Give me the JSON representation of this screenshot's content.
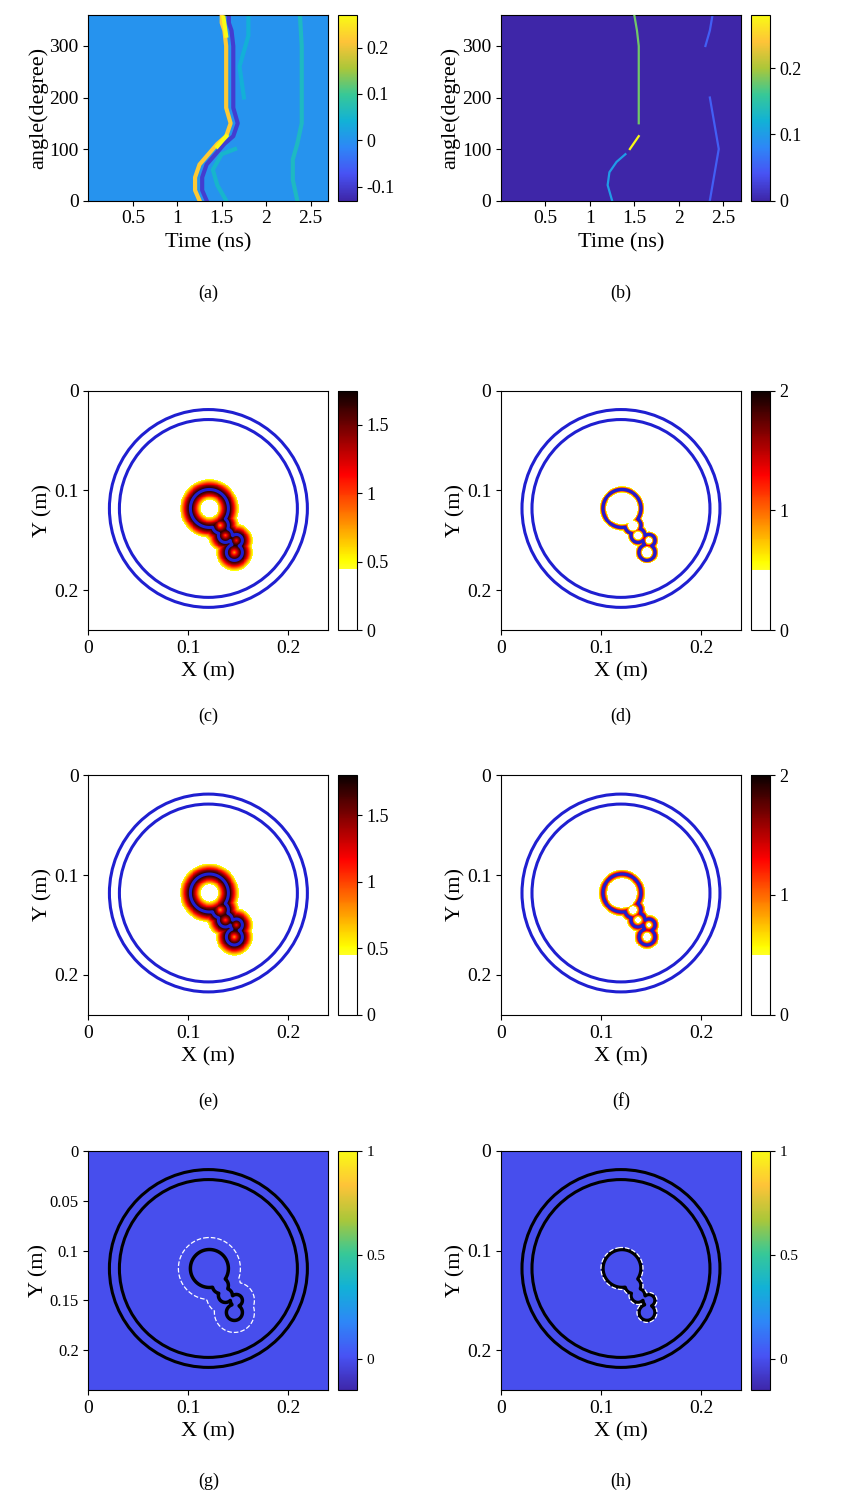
{
  "chart_data": [
    {
      "type": "traces",
      "label": "(a)",
      "xlabel": "Time (ns)",
      "ylabel": "angle(degree)",
      "xlim": [
        0,
        2.7
      ],
      "ylim": [
        0,
        360
      ],
      "xticks": [
        0.5,
        1,
        1.5,
        2,
        2.5
      ],
      "yticks": [
        0,
        100,
        200,
        300
      ],
      "colorbar": {
        "range": [
          -0.13,
          0.27
        ],
        "ticks": [
          -0.1,
          0,
          0.1,
          0.2
        ]
      },
      "background_value": 0,
      "traces": [
        {
          "value": 0.22,
          "x": [
            1.25,
            1.2,
            1.2,
            1.25,
            1.35,
            1.45,
            1.55,
            1.6,
            1.55,
            1.55,
            1.53,
            1.5,
            1.5
          ],
          "y": [
            0,
            20,
            45,
            70,
            90,
            110,
            125,
            150,
            180,
            300,
            330,
            345,
            360
          ]
        },
        {
          "value": -0.1,
          "x": [
            1.33,
            1.28,
            1.28,
            1.33,
            1.43,
            1.53,
            1.63,
            1.68,
            1.63,
            1.63,
            1.61,
            1.58,
            1.58
          ],
          "y": [
            0,
            20,
            45,
            70,
            90,
            110,
            125,
            150,
            180,
            300,
            330,
            345,
            360
          ]
        },
        {
          "value": 0.27,
          "x": [
            1.45,
            1.55
          ],
          "y": [
            105,
            125
          ]
        },
        {
          "value": 0.27,
          "x": [
            1.55,
            1.52
          ],
          "y": [
            320,
            355
          ]
        },
        {
          "value": 0.05,
          "x": [
            1.55,
            1.45,
            1.4,
            1.5,
            1.65
          ],
          "y": [
            0,
            30,
            60,
            90,
            100
          ]
        },
        {
          "value": 0.06,
          "x": [
            2.35,
            2.3,
            2.3,
            2.35,
            2.4,
            2.4,
            2.38
          ],
          "y": [
            0,
            40,
            80,
            110,
            150,
            300,
            360
          ]
        },
        {
          "value": 0.04,
          "x": [
            1.75,
            1.7,
            1.8,
            1.8
          ],
          "y": [
            200,
            260,
            320,
            360
          ]
        }
      ]
    },
    {
      "type": "traces",
      "label": "(b)",
      "xlabel": "Time (ns)",
      "ylabel": "angle(degree)",
      "xlim": [
        0,
        2.7
      ],
      "ylim": [
        0,
        360
      ],
      "xticks": [
        0.5,
        1,
        1.5,
        2,
        2.5
      ],
      "yticks": [
        0,
        100,
        200,
        300
      ],
      "colorbar": {
        "range": [
          0,
          0.28
        ],
        "ticks": [
          0,
          0.1,
          0.2
        ]
      },
      "background_value": 0,
      "traces": [
        {
          "value": 0.1,
          "x": [
            1.25,
            1.2,
            1.22,
            1.3,
            1.4
          ],
          "y": [
            0,
            30,
            55,
            75,
            90
          ]
        },
        {
          "value": 0.28,
          "x": [
            1.45,
            1.55
          ],
          "y": [
            100,
            125
          ]
        },
        {
          "value": 0.18,
          "x": [
            1.55,
            1.55,
            1.53,
            1.5
          ],
          "y": [
            150,
            300,
            330,
            360
          ]
        },
        {
          "value": 0.05,
          "x": [
            2.35,
            2.4,
            2.45,
            2.4,
            2.35
          ],
          "y": [
            0,
            50,
            100,
            150,
            200
          ]
        },
        {
          "value": 0.05,
          "x": [
            2.3,
            2.35,
            2.38
          ],
          "y": [
            300,
            330,
            360
          ]
        }
      ]
    },
    {
      "type": "band",
      "label": "(c)",
      "xlabel": "X (m)",
      "ylabel": "Y (m)",
      "xlim": [
        0,
        0.24
      ],
      "ylim": [
        0.24,
        0
      ],
      "xticks": [
        0,
        0.1,
        0.2
      ],
      "yticks": [
        0,
        0.1,
        0.2
      ],
      "colorbar": {
        "range": [
          0,
          1.75
        ],
        "ticks": [
          0,
          0.5,
          1,
          1.5
        ],
        "white_below": 0.45
      },
      "peak_value": 1.7,
      "band_width": 0.009
    },
    {
      "type": "band",
      "label": "(d)",
      "xlabel": "X (m)",
      "ylabel": "Y (m)",
      "xlim": [
        0,
        0.24
      ],
      "ylim": [
        0.24,
        0
      ],
      "xticks": [
        0,
        0.1,
        0.2
      ],
      "yticks": [
        0,
        0.1,
        0.2
      ],
      "colorbar": {
        "range": [
          0,
          2
        ],
        "ticks": [
          0,
          1,
          2
        ],
        "white_below": 0.5
      },
      "peak_value": 1.5,
      "band_width": 0.003
    },
    {
      "type": "band",
      "label": "(e)",
      "xlabel": "X (m)",
      "ylabel": "Y (m)",
      "xlim": [
        0,
        0.24
      ],
      "ylim": [
        0.24,
        0
      ],
      "xticks": [
        0,
        0.1,
        0.2
      ],
      "yticks": [
        0,
        0.1,
        0.2
      ],
      "colorbar": {
        "range": [
          0,
          1.8
        ],
        "ticks": [
          0,
          0.5,
          1,
          1.5
        ],
        "white_below": 0.45
      },
      "peak_value": 1.75,
      "band_width": 0.009
    },
    {
      "type": "band",
      "label": "(f)",
      "xlabel": "X (m)",
      "ylabel": "Y (m)",
      "xlim": [
        0,
        0.24
      ],
      "ylim": [
        0.24,
        0
      ],
      "xticks": [
        0,
        0.1,
        0.2
      ],
      "yticks": [
        0,
        0.1,
        0.2
      ],
      "colorbar": {
        "range": [
          0,
          2
        ],
        "ticks": [
          0,
          1,
          2
        ],
        "white_below": 0.5
      },
      "peak_value": 1.5,
      "band_width": 0.004
    },
    {
      "type": "contour",
      "label": "(g)",
      "xlabel": "X (m)",
      "ylabel": "Y (m)",
      "xlim": [
        0,
        0.24
      ],
      "ylim": [
        0.24,
        0
      ],
      "xticks": [
        0,
        0.1,
        0.2
      ],
      "yticks": [
        0,
        0.05,
        0.1,
        0.15,
        0.2
      ],
      "colorbar": {
        "range": [
          -0.15,
          1
        ],
        "ticks": [
          0,
          0.5,
          1
        ]
      },
      "background_value": 0,
      "reconstruction_offset": 0.012
    },
    {
      "type": "contour",
      "label": "(h)",
      "xlabel": "X (m)",
      "ylabel": "Y (m)",
      "xlim": [
        0,
        0.24
      ],
      "ylim": [
        0.24,
        0
      ],
      "xticks": [
        0,
        0.1,
        0.2
      ],
      "yticks": [
        0,
        0.1,
        0.2
      ],
      "colorbar": {
        "range": [
          -0.15,
          1
        ],
        "ticks": [
          0,
          0.5,
          1
        ]
      },
      "background_value": 0,
      "reconstruction_offset": 0.002
    }
  ],
  "rings": {
    "center": [
      0.12,
      0.118
    ],
    "radii": [
      0.099,
      0.089
    ]
  },
  "object_circles": [
    [
      0.121,
      0.118,
      0.019
    ],
    [
      0.132,
      0.135,
      0.008
    ],
    [
      0.137,
      0.145,
      0.007
    ],
    [
      0.148,
      0.15,
      0.006
    ],
    [
      0.146,
      0.162,
      0.008
    ]
  ]
}
